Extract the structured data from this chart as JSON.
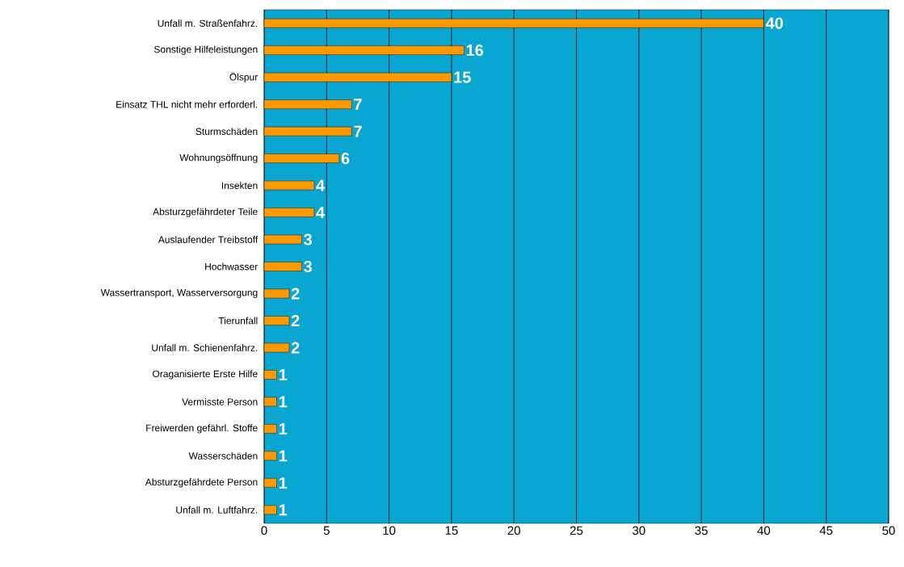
{
  "chart_data": {
    "type": "bar",
    "orientation": "horizontal",
    "categories": [
      "Unfall m. Straßenfahrz.",
      "Sonstige Hilfeleistungen",
      "Ölspur",
      "Einsatz THL nicht mehr erforderl.",
      "Sturmschäden",
      "Wohnungsöffnung",
      "Insekten",
      "Absturzgefährdeter Teile",
      "Auslaufender Treibstoff",
      "Hochwasser",
      "Wassertransport, Wasserversorgung",
      "Tierunfall",
      "Unfall m. Schienenfahrz.",
      "Oraganisierte Erste Hilfe",
      "Vermisste Person",
      "Freiwerden gefährl. Stoffe",
      "Wasserschäden",
      "Absturzgefährdete Person",
      "Unfall m. Luftfahrz."
    ],
    "values": [
      40,
      16,
      15,
      7,
      7,
      6,
      4,
      4,
      3,
      3,
      2,
      2,
      2,
      1,
      1,
      1,
      1,
      1,
      1
    ],
    "color": "#ff9900",
    "xlim": [
      0,
      50
    ],
    "xticks": [
      0,
      5,
      10,
      15,
      20,
      25,
      30,
      35,
      40,
      45,
      50
    ],
    "grid": "x",
    "data_labels": true
  }
}
